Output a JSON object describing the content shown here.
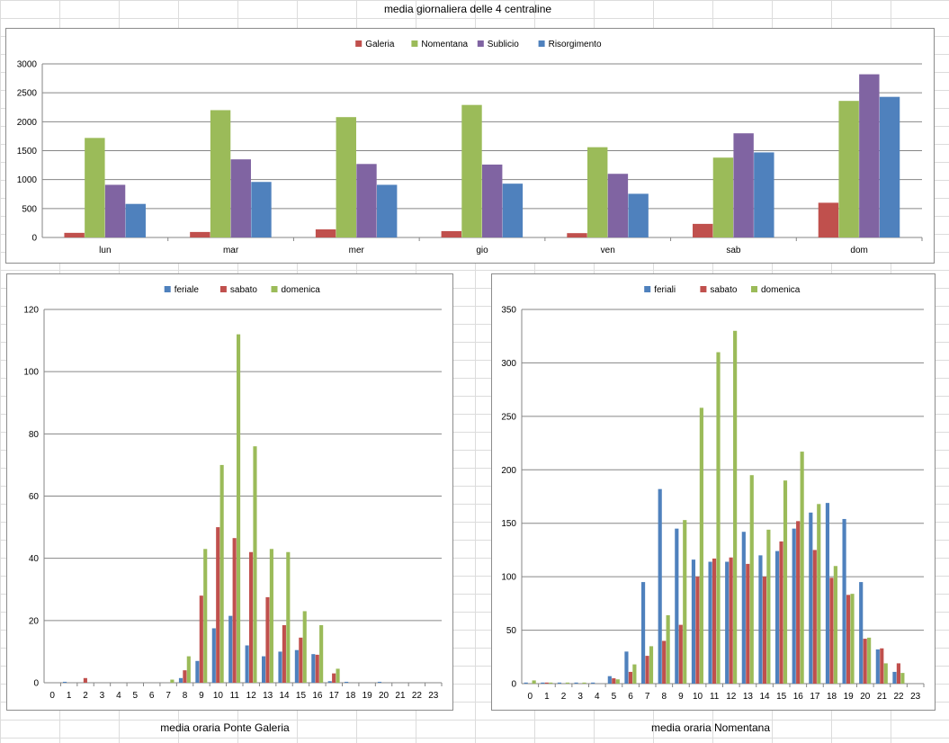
{
  "sheet": {
    "top_title": "media giornaliera delle 4 centraline",
    "caption_left": "media oraria Ponte Galeria",
    "caption_right": "media oraria Nomentana"
  },
  "chart_data": [
    {
      "id": "daily",
      "type": "bar",
      "categories": [
        "lun",
        "mar",
        "mer",
        "gio",
        "ven",
        "sab",
        "dom"
      ],
      "series": [
        {
          "name": "Galeria",
          "color": "#c0504d",
          "values": [
            80,
            95,
            140,
            110,
            75,
            235,
            600
          ]
        },
        {
          "name": "Nomentana",
          "color": "#9bbb59",
          "values": [
            1720,
            2200,
            2080,
            2290,
            1560,
            1380,
            2360
          ]
        },
        {
          "name": "Sublicio",
          "color": "#8064a2",
          "values": [
            910,
            1350,
            1270,
            1260,
            1100,
            1800,
            2820
          ]
        },
        {
          "name": "Risorgimento",
          "color": "#4f81bd",
          "values": [
            580,
            960,
            910,
            930,
            755,
            1470,
            2430
          ]
        }
      ],
      "yticks": [
        "0",
        "500",
        "1000",
        "1500",
        "2000",
        "2500",
        "3000"
      ],
      "ylim": [
        0,
        3000
      ],
      "legend": "top",
      "grid": true
    },
    {
      "id": "galeria",
      "type": "bar",
      "categories": [
        "0",
        "1",
        "2",
        "3",
        "4",
        "5",
        "6",
        "7",
        "8",
        "9",
        "10",
        "11",
        "12",
        "13",
        "14",
        "15",
        "16",
        "17",
        "18",
        "19",
        "20",
        "21",
        "22",
        "23"
      ],
      "series": [
        {
          "name": "feriale",
          "color": "#4f81bd",
          "values": [
            0,
            0.3,
            0,
            0,
            0,
            0,
            0,
            0,
            1.5,
            7,
            17.5,
            21.5,
            12,
            8.5,
            10,
            10.5,
            9.2,
            0.5,
            0.3,
            0,
            0.3,
            0,
            0,
            0
          ]
        },
        {
          "name": "sabato",
          "color": "#c0504d",
          "values": [
            0,
            0,
            1.5,
            0,
            0,
            0,
            0,
            0,
            4,
            28,
            50,
            46.5,
            42,
            27.5,
            18.5,
            14.5,
            9,
            3,
            0,
            0,
            0,
            0,
            0,
            0
          ]
        },
        {
          "name": "domenica",
          "color": "#9bbb59",
          "values": [
            0,
            0,
            0,
            0,
            0,
            0,
            0,
            1,
            8.5,
            43,
            70,
            112,
            76,
            43,
            42,
            23,
            18.5,
            4.5,
            0,
            0,
            0,
            0,
            0,
            0
          ]
        }
      ],
      "yticks": [
        "0",
        "20",
        "40",
        "60",
        "80",
        "100",
        "120"
      ],
      "ylim": [
        0,
        120
      ],
      "legend": "top",
      "grid": true
    },
    {
      "id": "nomentana",
      "type": "bar",
      "categories": [
        "0",
        "1",
        "2",
        "3",
        "4",
        "5",
        "6",
        "7",
        "8",
        "9",
        "10",
        "11",
        "12",
        "13",
        "14",
        "15",
        "16",
        "17",
        "18",
        "19",
        "20",
        "21",
        "22",
        "23"
      ],
      "series": [
        {
          "name": "feriali",
          "color": "#4f81bd",
          "values": [
            1,
            1,
            1,
            1,
            1,
            7,
            30,
            95,
            182,
            145,
            116,
            114,
            114,
            142,
            120,
            124,
            145,
            160,
            169,
            154,
            95,
            32,
            11,
            0
          ]
        },
        {
          "name": "sabato",
          "color": "#c0504d",
          "values": [
            0,
            1,
            0,
            0,
            0,
            5,
            11,
            26,
            40,
            55,
            100,
            117,
            118,
            112,
            100,
            133,
            152,
            125,
            99,
            83,
            42,
            33,
            19,
            0
          ]
        },
        {
          "name": "domenica",
          "color": "#9bbb59",
          "values": [
            3,
            1,
            1,
            1,
            0,
            4,
            18,
            35,
            64,
            153,
            258,
            310,
            330,
            195,
            144,
            190,
            217,
            168,
            110,
            84,
            43,
            19,
            10,
            0
          ]
        }
      ],
      "yticks": [
        "0",
        "50",
        "100",
        "150",
        "200",
        "250",
        "300",
        "350"
      ],
      "ylim": [
        0,
        350
      ],
      "legend": "top",
      "grid": true
    }
  ]
}
